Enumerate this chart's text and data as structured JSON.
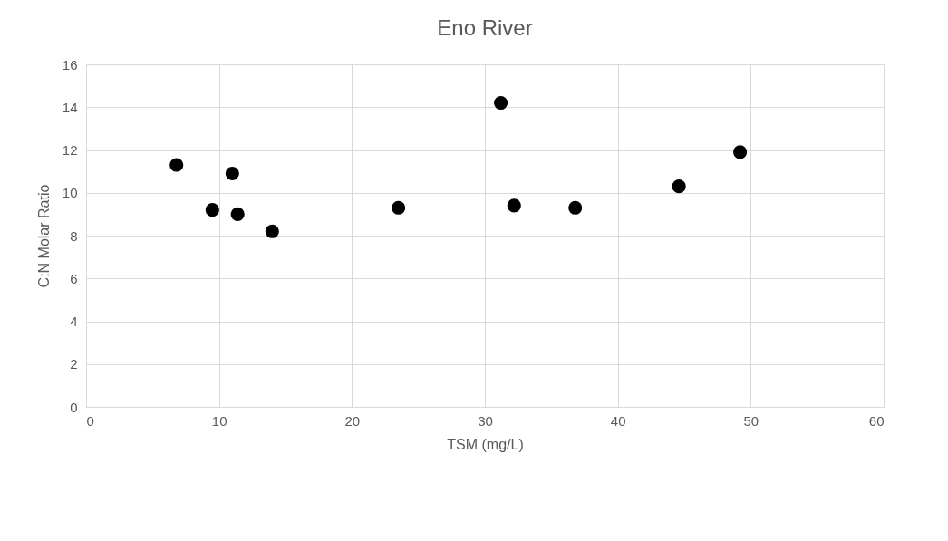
{
  "chart_data": {
    "type": "scatter",
    "title": "Eno River",
    "xlabel": "TSM (mg/L)",
    "ylabel": "C:N Molar Ratio",
    "x": [
      6.8,
      9.5,
      11.0,
      11.4,
      14.0,
      23.5,
      31.2,
      32.2,
      36.8,
      44.6,
      49.2
    ],
    "values": [
      11.3,
      9.2,
      10.9,
      9.0,
      8.2,
      9.3,
      14.2,
      9.4,
      9.3,
      10.3,
      11.9
    ],
    "color": "#000000",
    "marker": "circle",
    "xlim": [
      0,
      60
    ],
    "xticks": [
      0,
      10,
      20,
      30,
      40,
      50,
      60
    ],
    "ylim": [
      0,
      16
    ],
    "yticks": [
      0,
      2,
      4,
      6,
      8,
      10,
      12,
      14,
      16
    ],
    "grid": true
  }
}
